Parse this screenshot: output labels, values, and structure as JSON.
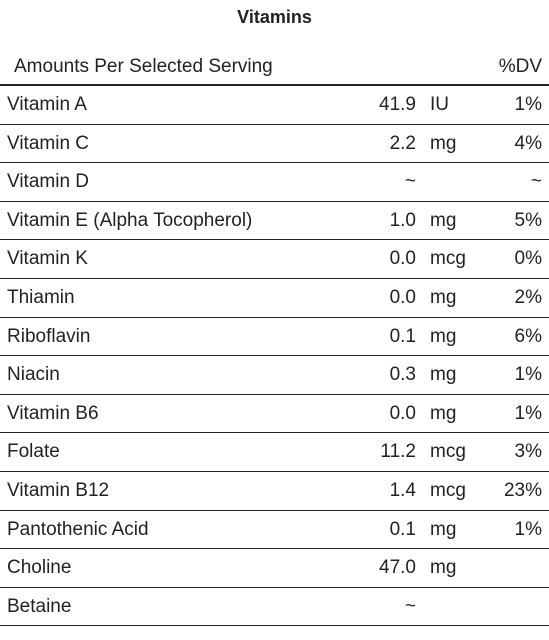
{
  "title": "Vitamins",
  "header": {
    "left": "Amounts Per Selected Serving",
    "right": "%DV"
  },
  "rows": [
    {
      "name": "Vitamin A",
      "amount": "41.9",
      "unit": "IU",
      "dv": "1%"
    },
    {
      "name": "Vitamin C",
      "amount": "2.2",
      "unit": "mg",
      "dv": "4%"
    },
    {
      "name": "Vitamin D",
      "amount": "~",
      "unit": "",
      "dv": "~"
    },
    {
      "name": "Vitamin E (Alpha Tocopherol)",
      "amount": "1.0",
      "unit": "mg",
      "dv": "5%"
    },
    {
      "name": "Vitamin K",
      "amount": "0.0",
      "unit": "mcg",
      "dv": "0%"
    },
    {
      "name": "Thiamin",
      "amount": "0.0",
      "unit": "mg",
      "dv": "2%"
    },
    {
      "name": "Riboflavin",
      "amount": "0.1",
      "unit": "mg",
      "dv": "6%"
    },
    {
      "name": "Niacin",
      "amount": "0.3",
      "unit": "mg",
      "dv": "1%"
    },
    {
      "name": "Vitamin B6",
      "amount": "0.0",
      "unit": "mg",
      "dv": "1%"
    },
    {
      "name": "Folate",
      "amount": "11.2",
      "unit": "mcg",
      "dv": "3%"
    },
    {
      "name": "Vitamin B12",
      "amount": "1.4",
      "unit": "mcg",
      "dv": "23%"
    },
    {
      "name": "Pantothenic Acid",
      "amount": "0.1",
      "unit": "mg",
      "dv": "1%"
    },
    {
      "name": "Choline",
      "amount": "47.0",
      "unit": "mg",
      "dv": ""
    },
    {
      "name": "Betaine",
      "amount": "~",
      "unit": "",
      "dv": ""
    }
  ]
}
